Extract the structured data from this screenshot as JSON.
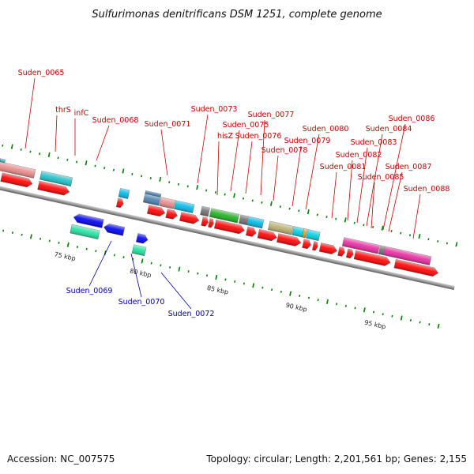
{
  "title": "Sulfurimonas denitrificans DSM 1251, complete genome",
  "footer": {
    "accession": "Accession: NC_007575",
    "topology": "Topology: circular; Length: 2,201,561 bp; Genes: 2,155"
  },
  "colors": {
    "cds_forward": "#ff0000",
    "cds_reverse": "#0000ee",
    "label_forward": "#cc0000",
    "label_reverse": "#0000aa",
    "backbone": "#888888",
    "tick": "#008800"
  },
  "scale": {
    "unit": "kbp",
    "labels": [
      "75 kbp",
      "80 kbp",
      "85 kbp",
      "90 kbp",
      "95 kbp"
    ]
  },
  "genes_top": [
    "Suden_0065",
    "thrS",
    "infC",
    "Suden_0068",
    "Suden_0071",
    "Suden_0073",
    "Suden_0075",
    "hisZ",
    "Suden_0076",
    "Suden_0077",
    "Suden_0078",
    "Suden_0079",
    "Suden_0080",
    "Suden_0081",
    "Suden_0082",
    "Suden_0083",
    "Suden_0084",
    "Suden_0085",
    "Suden_0086",
    "Suden_0087",
    "Suden_0088"
  ],
  "genes_bottom": [
    "Suden_0069",
    "Suden_0070",
    "Suden_0072"
  ]
}
